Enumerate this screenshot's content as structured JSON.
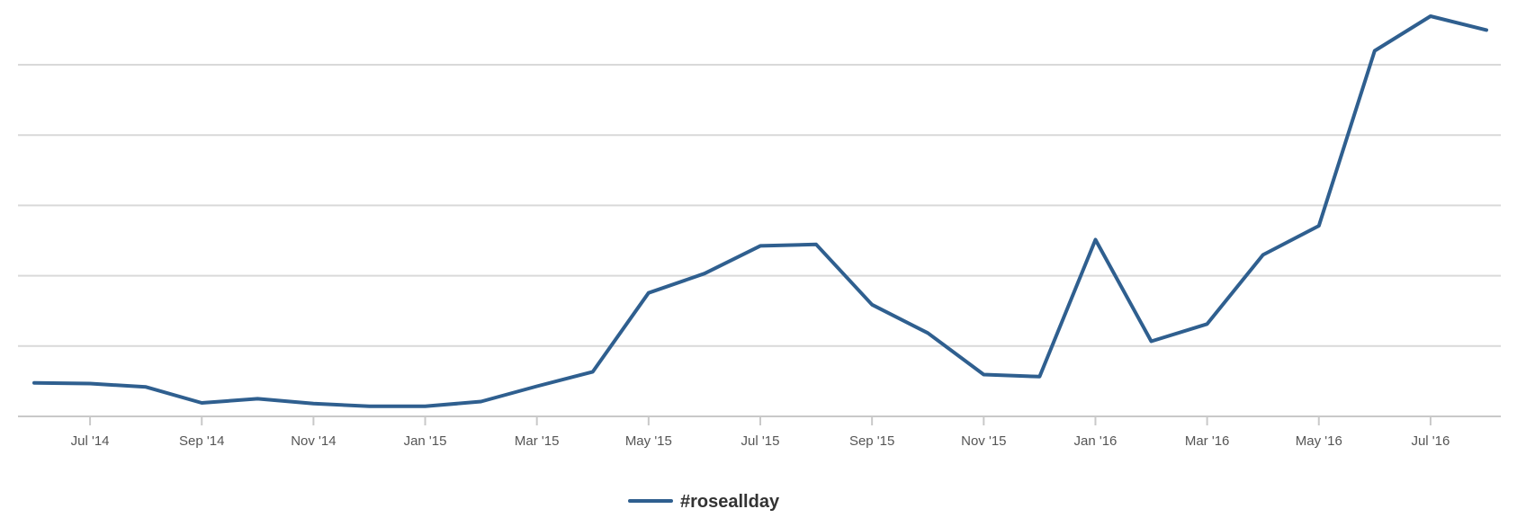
{
  "chart_data": {
    "type": "line",
    "title": "",
    "xlabel": "",
    "ylabel": "",
    "grid": true,
    "legend_position": "bottom-center",
    "x": [
      "2014-06",
      "2014-07",
      "2014-08",
      "2014-09",
      "2014-10",
      "2014-11",
      "2014-12",
      "2015-01",
      "2015-02",
      "2015-03",
      "2015-04",
      "2015-05",
      "2015-06",
      "2015-07",
      "2015-08",
      "2015-09",
      "2015-10",
      "2015-11",
      "2015-12",
      "2016-01",
      "2016-02",
      "2016-03",
      "2016-04",
      "2016-05",
      "2016-06",
      "2016-07",
      "2016-08"
    ],
    "x_tick_labels": [
      "Jul '14",
      "Sep '14",
      "Nov '14",
      "Jan '15",
      "Mar '15",
      "May '15",
      "Jul '15",
      "Sep '15",
      "Nov '15",
      "Jan '16",
      "Mar '16",
      "May '16",
      "Jul '16"
    ],
    "x_tick_index": [
      1,
      3,
      5,
      7,
      9,
      11,
      13,
      15,
      17,
      19,
      21,
      23,
      25
    ],
    "y_gridlines": 6,
    "series": [
      {
        "name": "#roseallday",
        "color": "#2f5f8f",
        "values": [
          0.42,
          0.41,
          0.36,
          0.13,
          0.19,
          0.12,
          0.08,
          0.08,
          0.15,
          0.37,
          0.58,
          1.72,
          2.0,
          2.4,
          2.42,
          1.55,
          1.14,
          0.54,
          0.51,
          2.49,
          1.02,
          1.27,
          2.27,
          2.69,
          5.22,
          5.72,
          5.52
        ]
      }
    ]
  }
}
